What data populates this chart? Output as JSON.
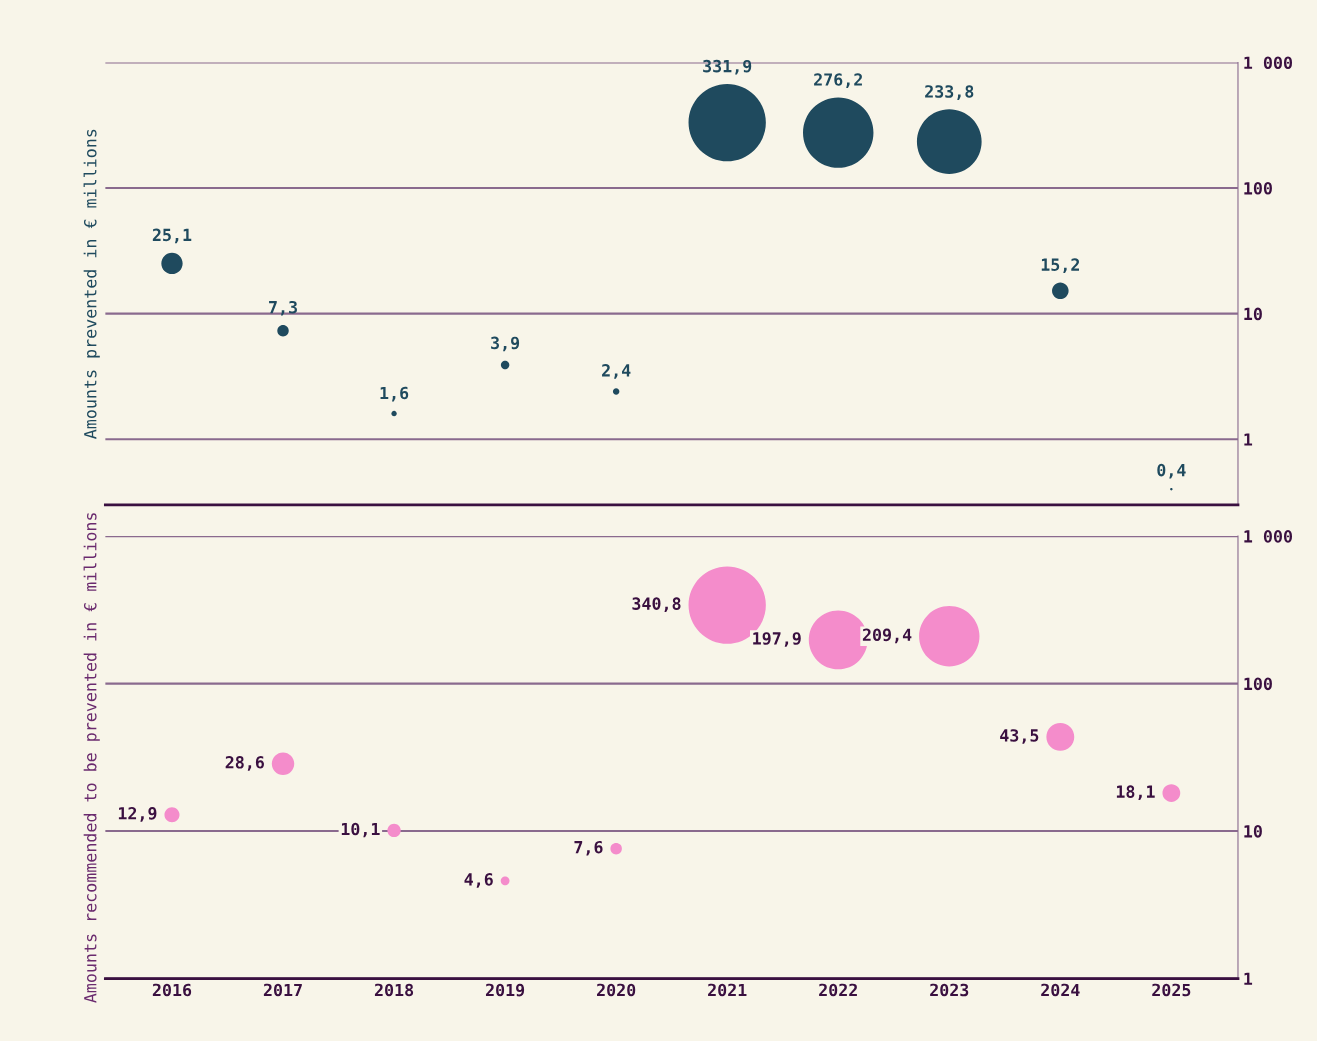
{
  "chart_data": [
    {
      "type": "bubble",
      "ylabel": "Amounts prevented in € millions",
      "categories": [
        "2016",
        "2017",
        "2018",
        "2019",
        "2020",
        "2021",
        "2022",
        "2023",
        "2024",
        "2025"
      ],
      "series": [
        {
          "color": "#1f4a5e",
          "values": [
            25.1,
            7.3,
            1.6,
            3.9,
            2.4,
            331.9,
            276.2,
            233.8,
            15.2,
            0.4
          ],
          "sizes": [
            0.076,
            0.022,
            0.005,
            0.012,
            0.007,
            1,
            0.83,
            0.7,
            0.046,
            0.001
          ],
          "value_labels": [
            "25,1",
            "7,3",
            "1,6",
            "3,9",
            "2,4",
            "331,9",
            "276,2",
            "233,8",
            "15,2",
            "0,4"
          ]
        }
      ],
      "log": "y",
      "ylim": [
        0.3,
        1000
      ],
      "yticks": [
        1,
        10,
        100,
        {
          "value": 1000,
          "label": "1 000"
        }
      ],
      "grid": "y",
      "tick_labels": "y"
    },
    {
      "type": "bubble",
      "ylabel": "Amounts recommended to be prevented in € millions",
      "categories": [
        "2016",
        "2017",
        "2018",
        "2019",
        "2020",
        "2021",
        "2022",
        "2023",
        "2024",
        "2025"
      ],
      "series": [
        {
          "color": "#f48ccb",
          "values": [
            12.9,
            28.6,
            10.1,
            4.6,
            7.6,
            340.8,
            197.9,
            209.4,
            43.5,
            18.1
          ],
          "sizes": [
            0.038,
            0.084,
            0.03,
            0.013,
            0.022,
            1,
            0.58,
            0.61,
            0.13,
            0.053
          ],
          "value_labels": [
            "12,9",
            "28,6",
            "10,1",
            "4,6",
            "7,6",
            "340,8",
            "197,9",
            "209,4",
            "43,5",
            "18,1"
          ]
        }
      ],
      "log": "y",
      "ylim": [
        1,
        1000
      ],
      "yticks": [
        1,
        10,
        100,
        {
          "value": 1000,
          "label": "1 000"
        }
      ],
      "grid": "y"
    }
  ]
}
